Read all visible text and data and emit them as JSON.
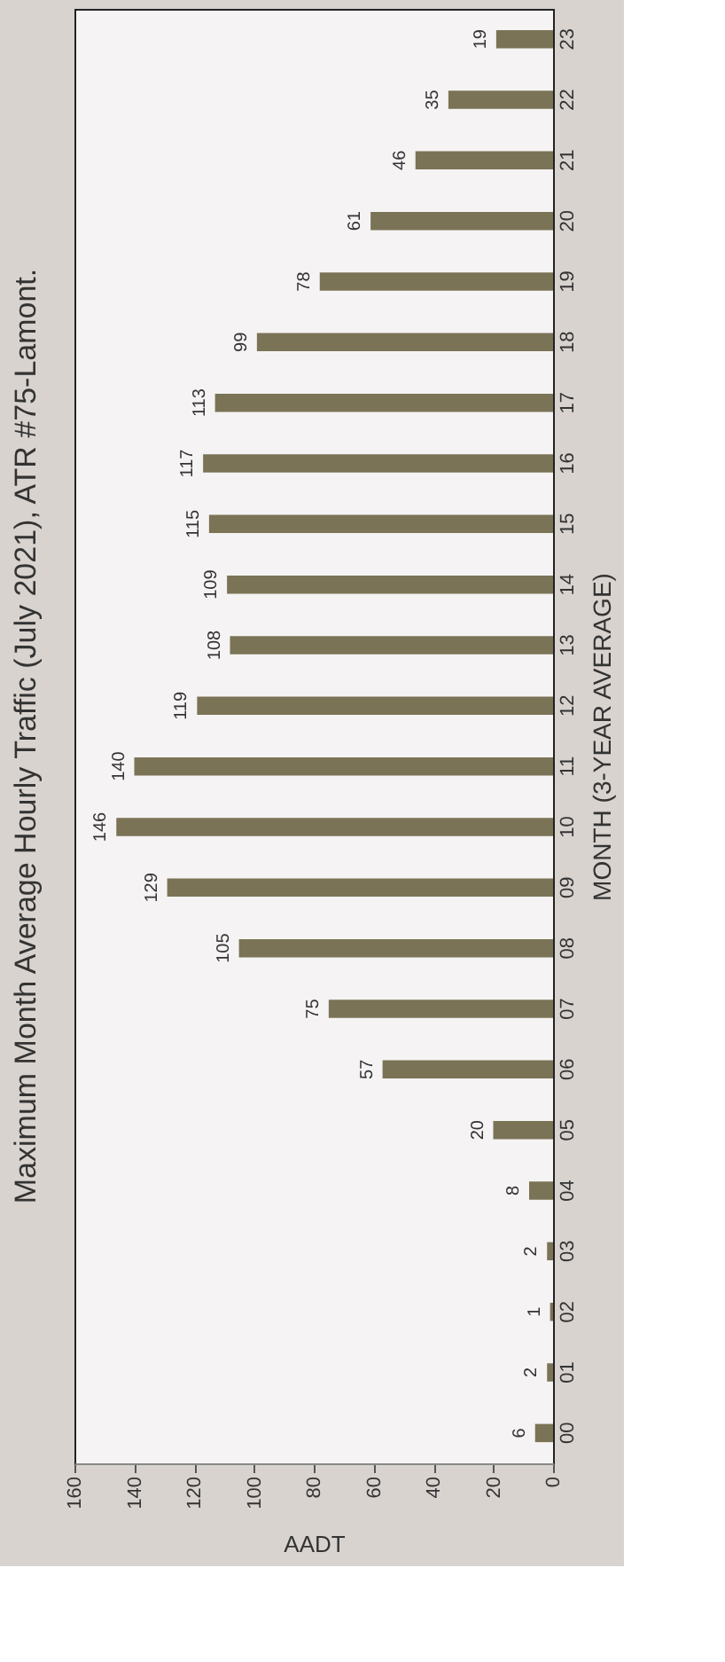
{
  "chart_data": {
    "type": "bar",
    "orientation": "horizontal",
    "title": "Maximum Month Average Hourly Traffic (July 2021), ATR #75-Lamont.",
    "xlabel": "AADT",
    "ylabel": "MONTH (3-YEAR AVERAGE)",
    "categories": [
      "23",
      "22",
      "21",
      "20",
      "19",
      "18",
      "17",
      "16",
      "15",
      "14",
      "13",
      "12",
      "11",
      "10",
      "09",
      "08",
      "07",
      "06",
      "05",
      "04",
      "03",
      "02",
      "01",
      "00"
    ],
    "values": [
      19,
      35,
      46,
      61,
      78,
      99,
      113,
      117,
      115,
      109,
      108,
      119,
      140,
      146,
      129,
      105,
      75,
      57,
      20,
      8,
      2,
      1,
      2,
      6
    ],
    "color": "#7a7356",
    "xlim": [
      160,
      0
    ],
    "xticks": [
      160,
      140,
      120,
      100,
      80,
      60,
      40,
      20,
      0
    ],
    "data_labels": true,
    "grid": false,
    "legend": false
  }
}
